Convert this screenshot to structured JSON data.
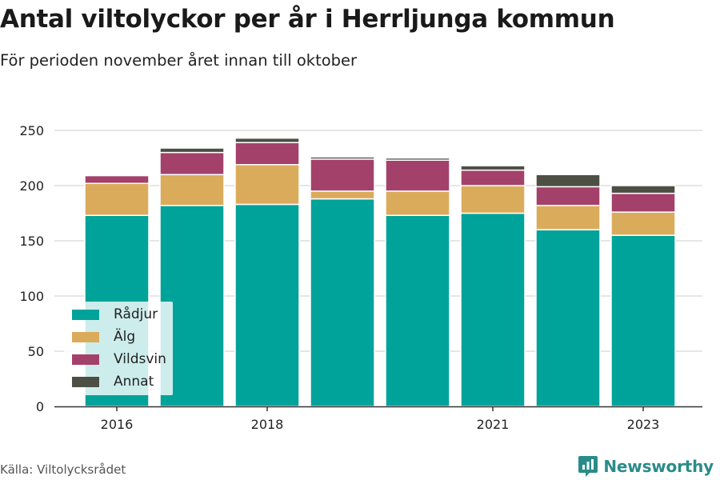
{
  "title": "Antal viltolyckor per år i Herrljunga kommun",
  "subtitle": "För perioden november året innan till oktober",
  "source": "Källa: Viltolycksrådet",
  "brand": {
    "name": "Newsworthy",
    "color": "#2a8c8a",
    "icon": "newsworthy-logo-icon"
  },
  "chart_data": {
    "type": "bar",
    "stacked": true,
    "categories": [
      "2016",
      "2017",
      "2018",
      "2019",
      "2020",
      "2021",
      "2022",
      "2023"
    ],
    "x_tick_labels": [
      "2016",
      "2018",
      "2021",
      "2023"
    ],
    "series": [
      {
        "name": "Rådjur",
        "color": "#00a39a",
        "values": [
          173,
          182,
          183,
          188,
          173,
          175,
          160,
          155
        ]
      },
      {
        "name": "Älg",
        "color": "#dbab5c",
        "values": [
          29,
          28,
          36,
          7,
          22,
          25,
          22,
          21
        ]
      },
      {
        "name": "Vildsvin",
        "color": "#a4416a",
        "values": [
          7,
          20,
          20,
          29,
          28,
          14,
          17,
          17
        ]
      },
      {
        "name": "Annat",
        "color": "#4d4f45",
        "values": [
          0,
          4,
          4,
          2,
          2,
          4,
          11,
          7
        ]
      }
    ],
    "ylim": [
      0,
      250
    ],
    "yticks": [
      0,
      50,
      100,
      150,
      200,
      250
    ],
    "grid": true,
    "legend_position": "bottom-left"
  }
}
